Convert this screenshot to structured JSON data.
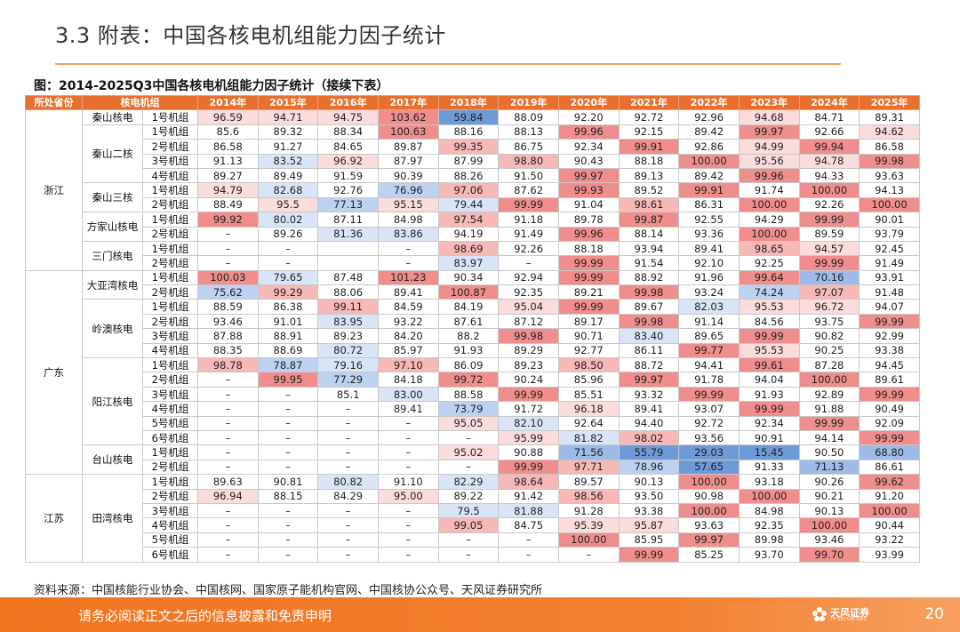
{
  "page_title": "3.3 附表：中国各核电机组能力因子统计",
  "caption": "图：2014-2025Q3中国各核电机组能力因子统计（接续下表）",
  "headers": [
    "所处省份",
    "核电机组",
    "",
    "2014年",
    "2015年",
    "2016年",
    "2017年",
    "2018年",
    "2019年",
    "2020年",
    "2021年",
    "2022年",
    "2023年",
    "2024年",
    "2025年"
  ],
  "provinces": [
    {
      "name": "浙江",
      "plants": [
        {
          "name": "秦山核电",
          "units": [
            {
              "name": "1号机组",
              "v": [
                "96.59",
                "94.71",
                "94.75",
                "103.62",
                "59.84",
                "88.09",
                "92.20",
                "92.72",
                "92.96",
                "94.68",
                "84.71",
                "89.31"
              ]
            }
          ]
        },
        {
          "name": "秦山二核",
          "units": [
            {
              "name": "1号机组",
              "v": [
                "85.6",
                "89.32",
                "88.34",
                "100.63",
                "88.16",
                "88.13",
                "99.96",
                "92.15",
                "89.42",
                "99.97",
                "92.66",
                "94.62"
              ]
            },
            {
              "name": "2号机组",
              "v": [
                "86.58",
                "91.27",
                "84.65",
                "89.87",
                "99.35",
                "86.75",
                "92.34",
                "99.91",
                "92.86",
                "94.99",
                "99.94",
                "86.58"
              ]
            },
            {
              "name": "3号机组",
              "v": [
                "91.13",
                "83.52",
                "96.92",
                "87.97",
                "87.99",
                "98.80",
                "90.43",
                "88.18",
                "100.00",
                "95.56",
                "94.78",
                "99.98"
              ]
            },
            {
              "name": "4号机组",
              "v": [
                "89.27",
                "89.49",
                "91.59",
                "90.39",
                "88.26",
                "91.50",
                "99.97",
                "89.13",
                "89.42",
                "99.96",
                "94.33",
                "93.63"
              ]
            }
          ]
        },
        {
          "name": "秦山三核",
          "units": [
            {
              "name": "1号机组",
              "v": [
                "94.79",
                "82.68",
                "92.76",
                "76.96",
                "97.06",
                "87.62",
                "99.93",
                "89.52",
                "99.91",
                "91.74",
                "100.00",
                "94.13"
              ]
            },
            {
              "name": "2号机组",
              "v": [
                "88.49",
                "95.5",
                "77.13",
                "95.15",
                "79.44",
                "99.99",
                "91.04",
                "98.61",
                "86.31",
                "100.00",
                "92.26",
                "100.00"
              ]
            }
          ]
        },
        {
          "name": "方家山核电",
          "units": [
            {
              "name": "1号机组",
              "v": [
                "99.92",
                "80.02",
                "87.11",
                "84.98",
                "97.54",
                "91.18",
                "89.78",
                "99.87",
                "92.55",
                "94.29",
                "99.99",
                "90.01"
              ]
            },
            {
              "name": "2号机组",
              "v": [
                "–",
                "89.26",
                "81.36",
                "83.86",
                "94.19",
                "91.49",
                "99.96",
                "88.14",
                "93.36",
                "100.00",
                "89.59",
                "93.79"
              ]
            }
          ]
        },
        {
          "name": "三门核电",
          "units": [
            {
              "name": "1号机组",
              "v": [
                "–",
                "–",
                "",
                "–",
                "98.69",
                "92.26",
                "88.18",
                "93.94",
                "89.41",
                "98.65",
                "94.57",
                "92.45"
              ]
            },
            {
              "name": "2号机组",
              "v": [
                "–",
                "–",
                "",
                "–",
                "83.97",
                "–",
                "99.99",
                "91.54",
                "92.10",
                "92.25",
                "99.99",
                "91.49"
              ]
            }
          ]
        }
      ]
    },
    {
      "name": "广东",
      "plants": [
        {
          "name": "大亚湾核电",
          "units": [
            {
              "name": "1号机组",
              "v": [
                "100.03",
                "79.65",
                "87.48",
                "101.23",
                "90.34",
                "92.94",
                "99.99",
                "88.92",
                "91.96",
                "99.64",
                "70.16",
                "93.91"
              ]
            },
            {
              "name": "2号机组",
              "v": [
                "75.62",
                "99.29",
                "88.06",
                "89.41",
                "100.87",
                "92.35",
                "89.21",
                "99.98",
                "93.24",
                "74.24",
                "97.07",
                "91.48"
              ]
            }
          ]
        },
        {
          "name": "岭澳核电",
          "units": [
            {
              "name": "1号机组",
              "v": [
                "88.59",
                "86.38",
                "99.11",
                "84.59",
                "84.19",
                "95.04",
                "99.99",
                "89.67",
                "82.03",
                "95.53",
                "96.72",
                "94.07"
              ]
            },
            {
              "name": "2号机组",
              "v": [
                "93.46",
                "91.01",
                "83.95",
                "93.22",
                "87.61",
                "87.12",
                "89.17",
                "99.98",
                "91.14",
                "84.56",
                "93.75",
                "99.99"
              ]
            },
            {
              "name": "3号机组",
              "v": [
                "87.88",
                "88.91",
                "89.23",
                "84.20",
                "88.2",
                "99.98",
                "90.71",
                "83.40",
                "89.65",
                "99.99",
                "90.82",
                "92.99"
              ]
            },
            {
              "name": "4号机组",
              "v": [
                "88.35",
                "88.69",
                "80.72",
                "85.97",
                "91.93",
                "89.29",
                "92.77",
                "86.11",
                "99.77",
                "95.53",
                "90.25",
                "93.38"
              ]
            }
          ]
        },
        {
          "name": "阳江核电",
          "units": [
            {
              "name": "1号机组",
              "v": [
                "98.78",
                "78.87",
                "79.16",
                "97.10",
                "86.09",
                "89.23",
                "98.50",
                "88.72",
                "94.41",
                "99.61",
                "87.28",
                "94.45"
              ]
            },
            {
              "name": "2号机组",
              "v": [
                "–",
                "99.95",
                "77.29",
                "84.18",
                "99.72",
                "90.24",
                "85.96",
                "99.97",
                "91.78",
                "94.04",
                "100.00",
                "89.61"
              ]
            },
            {
              "name": "3号机组",
              "v": [
                "–",
                "–",
                "85.1",
                "83.00",
                "88.58",
                "99.99",
                "85.51",
                "93.32",
                "99.99",
                "91.93",
                "92.89",
                "99.99"
              ]
            },
            {
              "name": "4号机组",
              "v": [
                "–",
                "–",
                "–",
                "89.41",
                "73.79",
                "91.72",
                "96.18",
                "89.41",
                "93.07",
                "99.99",
                "91.88",
                "90.49"
              ]
            },
            {
              "name": "5号机组",
              "v": [
                "–",
                "–",
                "–",
                "–",
                "95.05",
                "82.10",
                "92.64",
                "94.40",
                "92.72",
                "92.34",
                "99.99",
                "92.09"
              ]
            },
            {
              "name": "6号机组",
              "v": [
                "–",
                "–",
                "–",
                "–",
                "–",
                "95.99",
                "81.82",
                "98.02",
                "93.56",
                "90.91",
                "94.14",
                "99.99"
              ]
            }
          ]
        },
        {
          "name": "台山核电",
          "units": [
            {
              "name": "1号机组",
              "v": [
                "–",
                "–",
                "–",
                "–",
                "95.02",
                "90.88",
                "71.56",
                "55.79",
                "29.03",
                "15.45",
                "90.50",
                "68.80"
              ]
            },
            {
              "name": "2号机组",
              "v": [
                "–",
                "–",
                "–",
                "–",
                "–",
                "99.99",
                "97.71",
                "78.96",
                "57.65",
                "91.33",
                "71.13",
                "86.61"
              ]
            }
          ]
        }
      ]
    },
    {
      "name": "江苏",
      "plants": [
        {
          "name": "田湾核电",
          "units": [
            {
              "name": "1号机组",
              "v": [
                "89.63",
                "90.81",
                "80.82",
                "91.10",
                "82.29",
                "98.64",
                "89.57",
                "90.13",
                "100.00",
                "93.18",
                "90.26",
                "99.62"
              ]
            },
            {
              "name": "2号机组",
              "v": [
                "96.94",
                "88.15",
                "84.29",
                "95.00",
                "89.22",
                "91.42",
                "98.56",
                "93.50",
                "90.98",
                "100.00",
                "90.21",
                "91.20"
              ]
            },
            {
              "name": "3号机组",
              "v": [
                "–",
                "–",
                "–",
                "–",
                "79.5",
                "81.88",
                "91.28",
                "93.38",
                "100.00",
                "84.98",
                "90.13",
                "100.00"
              ]
            },
            {
              "name": "4号机组",
              "v": [
                "–",
                "–",
                "–",
                "–",
                "99.05",
                "84.75",
                "95.39",
                "95.87",
                "93.63",
                "92.35",
                "100.00",
                "90.44"
              ]
            },
            {
              "name": "5号机组",
              "v": [
                "–",
                "–",
                "–",
                "–",
                "–",
                "–",
                "100.00",
                "85.95",
                "99.97",
                "89.98",
                "93.46",
                "93.22"
              ]
            },
            {
              "name": "6号机组",
              "v": [
                "–",
                "–",
                "–",
                "–",
                "–",
                "–",
                "–",
                "99.99",
                "85.25",
                "93.70",
                "99.70",
                "93.99"
              ]
            }
          ]
        }
      ]
    }
  ],
  "source": "资料来源：中国核能行业协会、中国核网、国家原子能机构官网、中国核协公众号、天风证券研究所",
  "footer": {
    "disclaimer": "请务必阅读正文之后的信息披露和免责申明",
    "page_number": "20",
    "logo_cn": "天风证券",
    "logo_en": "TF SECURITIES"
  },
  "colors": {
    "accent": "#e8702e",
    "high": "#f08080",
    "low": "#6f9ad8",
    "neutral": "#ffffff"
  }
}
